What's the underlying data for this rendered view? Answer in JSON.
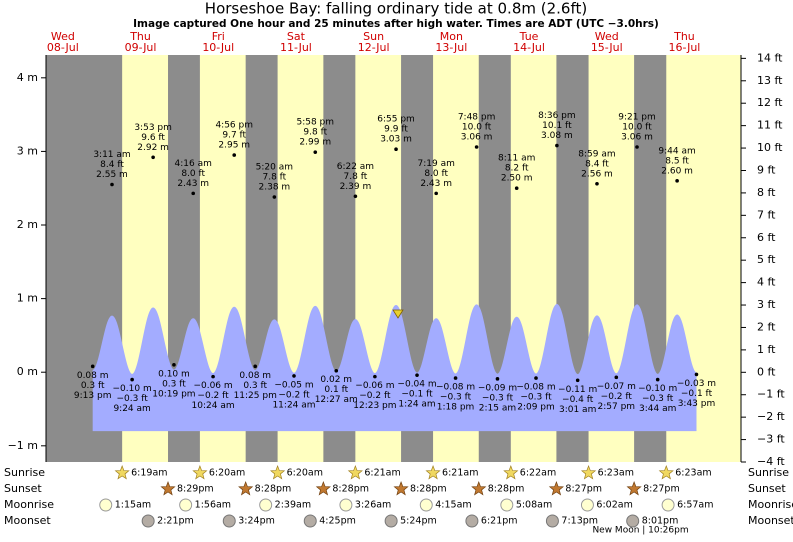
{
  "chart_data": {
    "type": "tide",
    "title": "Horseshoe Bay: falling  ordinary tide at 0.8m (2.6ft)",
    "subtitle": "Image captured One hour and 25 minutes after high water. Times are ADT (UTC −3.0hrs)",
    "ylim": [
      -1.22,
      4.31
    ],
    "yticks": [
      {
        "value": -1,
        "label": "−1 m"
      },
      {
        "value": 0,
        "label": "0 m"
      },
      {
        "value": 1,
        "label": "1 m"
      },
      {
        "value": 2,
        "label": "2 m"
      },
      {
        "value": 3,
        "label": "3 m"
      },
      {
        "value": 4,
        "label": "4 m"
      }
    ],
    "y2lim": [
      -4,
      14.15
    ],
    "y2ticks": [
      {
        "value": -4,
        "label": "−4 ft"
      },
      {
        "value": -3,
        "label": "−3 ft"
      },
      {
        "value": -2,
        "label": "−2 ft"
      },
      {
        "value": -1,
        "label": "−1 ft"
      },
      {
        "value": 0,
        "label": "0 ft"
      },
      {
        "value": 1,
        "label": "1 ft"
      },
      {
        "value": 2,
        "label": "2 ft"
      },
      {
        "value": 3,
        "label": "3 ft"
      },
      {
        "value": 4,
        "label": "4 ft"
      },
      {
        "value": 5,
        "label": "5 ft"
      },
      {
        "value": 6,
        "label": "6 ft"
      },
      {
        "value": 7,
        "label": "7 ft"
      },
      {
        "value": 8,
        "label": "8 ft"
      },
      {
        "value": 9,
        "label": "9 ft"
      },
      {
        "value": 10,
        "label": "10 ft"
      },
      {
        "value": 11,
        "label": "11 ft"
      },
      {
        "value": 12,
        "label": "12 ft"
      },
      {
        "value": 13,
        "label": "13 ft"
      },
      {
        "value": 14,
        "label": "14 ft"
      }
    ],
    "row_labels": {
      "sunrise": "Sunrise",
      "sunset": "Sunset",
      "moonrise": "Moonrise",
      "moonset": "Moonset"
    },
    "days": [
      {
        "day": "Wed",
        "date": "08-Jul",
        "tides": [
          {
            "time": "9:13 pm",
            "m": 0.08,
            "m_label": "0.08 m",
            "ft": "0.3 ft"
          }
        ]
      },
      {
        "day": "Thu",
        "date": "09-Jul",
        "sunrise": "6:19am",
        "sunset": "8:29pm",
        "moonrise": "1:15am",
        "moonset": "2:21pm",
        "tides": [
          {
            "time": "3:11 am",
            "m": 2.55,
            "m_label": "2.55 m",
            "ft": "8.4 ft"
          },
          {
            "time": "9:24 am",
            "m": -0.1,
            "m_label": "−0.10 m",
            "ft": "−0.3 ft"
          },
          {
            "time": "3:53 pm",
            "m": 2.92,
            "m_label": "2.92 m",
            "ft": "9.6 ft"
          },
          {
            "time": "10:19 pm",
            "m": 0.1,
            "m_label": "0.10 m",
            "ft": "0.3 ft"
          }
        ]
      },
      {
        "day": "Fri",
        "date": "10-Jul",
        "sunrise": "6:20am",
        "sunset": "8:28pm",
        "moonrise": "1:56am",
        "moonset": "3:24pm",
        "tides": [
          {
            "time": "4:16 am",
            "m": 2.43,
            "m_label": "2.43 m",
            "ft": "8.0 ft"
          },
          {
            "time": "10:24 am",
            "m": -0.06,
            "m_label": "−0.06 m",
            "ft": "−0.2 ft"
          },
          {
            "time": "4:56 pm",
            "m": 2.95,
            "m_label": "2.95 m",
            "ft": "9.7 ft"
          },
          {
            "time": "11:25 pm",
            "m": 0.08,
            "m_label": "0.08 m",
            "ft": "0.3 ft"
          }
        ]
      },
      {
        "day": "Sat",
        "date": "11-Jul",
        "sunrise": "6:20am",
        "sunset": "8:28pm",
        "moonrise": "2:39am",
        "moonset": "4:25pm",
        "tides": [
          {
            "time": "5:20 am",
            "m": 2.38,
            "m_label": "2.38 m",
            "ft": "7.8 ft"
          },
          {
            "time": "11:24 am",
            "m": -0.05,
            "m_label": "−0.05 m",
            "ft": "−0.2 ft"
          },
          {
            "time": "5:58 pm",
            "m": 2.99,
            "m_label": "2.99 m",
            "ft": "9.8 ft"
          }
        ]
      },
      {
        "day": "Sun",
        "date": "12-Jul",
        "sunrise": "6:21am",
        "sunset": "8:28pm",
        "moonrise": "3:26am",
        "moonset": "5:24pm",
        "tides": [
          {
            "time": "12:27 am",
            "m": 0.02,
            "m_label": "0.02 m",
            "ft": "0.1 ft"
          },
          {
            "time": "6:22 am",
            "m": 2.39,
            "m_label": "2.39 m",
            "ft": "7.8 ft"
          },
          {
            "time": "12:23 pm",
            "m": -0.06,
            "m_label": "−0.06 m",
            "ft": "−0.2 ft"
          },
          {
            "time": "6:55 pm",
            "m": 3.03,
            "m_label": "3.03 m",
            "ft": "9.9 ft"
          }
        ]
      },
      {
        "day": "Mon",
        "date": "13-Jul",
        "sunrise": "6:21am",
        "sunset": "8:28pm",
        "moonrise": "4:15am",
        "moonset": "6:21pm",
        "tides": [
          {
            "time": "1:24 am",
            "m": -0.04,
            "m_label": "−0.04 m",
            "ft": "−0.1 ft"
          },
          {
            "time": "7:19 am",
            "m": 2.43,
            "m_label": "2.43 m",
            "ft": "8.0 ft"
          },
          {
            "time": "1:18 pm",
            "m": -0.08,
            "m_label": "−0.08 m",
            "ft": "−0.3 ft"
          },
          {
            "time": "7:48 pm",
            "m": 3.06,
            "m_label": "3.06 m",
            "ft": "10.0 ft"
          }
        ]
      },
      {
        "day": "Tue",
        "date": "14-Jul",
        "sunrise": "6:22am",
        "sunset": "8:27pm",
        "moonrise": "5:08am",
        "moonset": "7:13pm",
        "tides": [
          {
            "time": "2:15 am",
            "m": -0.09,
            "m_label": "−0.09 m",
            "ft": "−0.3 ft"
          },
          {
            "time": "8:11 am",
            "m": 2.5,
            "m_label": "2.50 m",
            "ft": "8.2 ft"
          },
          {
            "time": "2:09 pm",
            "m": -0.08,
            "m_label": "−0.08 m",
            "ft": "−0.3 ft"
          },
          {
            "time": "8:36 pm",
            "m": 3.08,
            "m_label": "3.08 m",
            "ft": "10.1 ft"
          }
        ]
      },
      {
        "day": "Wed",
        "date": "15-Jul",
        "sunrise": "6:23am",
        "sunset": "8:27pm",
        "moonrise": "6:02am",
        "moonset": "8:01pm",
        "moon_phase": "New Moon | 10:26pm",
        "tides": [
          {
            "time": "3:01 am",
            "m": -0.11,
            "m_label": "−0.11 m",
            "ft": "−0.4 ft"
          },
          {
            "time": "8:59 am",
            "m": 2.56,
            "m_label": "2.56 m",
            "ft": "8.4 ft"
          },
          {
            "time": "2:57 pm",
            "m": -0.07,
            "m_label": "−0.07 m",
            "ft": "−0.2 ft"
          },
          {
            "time": "9:21 pm",
            "m": 3.06,
            "m_label": "3.06 m",
            "ft": "10.0 ft"
          }
        ]
      },
      {
        "day": "Thu",
        "date": "16-Jul",
        "sunrise": "6:23am",
        "moonrise": "6:57am",
        "tides": [
          {
            "time": "3:44 am",
            "m": -0.1,
            "m_label": "−0.10 m",
            "ft": "−0.3 ft"
          },
          {
            "time": "9:44 am",
            "m": 2.6,
            "m_label": "2.60 m",
            "ft": "8.5 ft"
          },
          {
            "time": "3:43 pm",
            "m": -0.03,
            "m_label": "−0.03 m",
            "ft": "−0.1 ft"
          }
        ]
      }
    ]
  }
}
